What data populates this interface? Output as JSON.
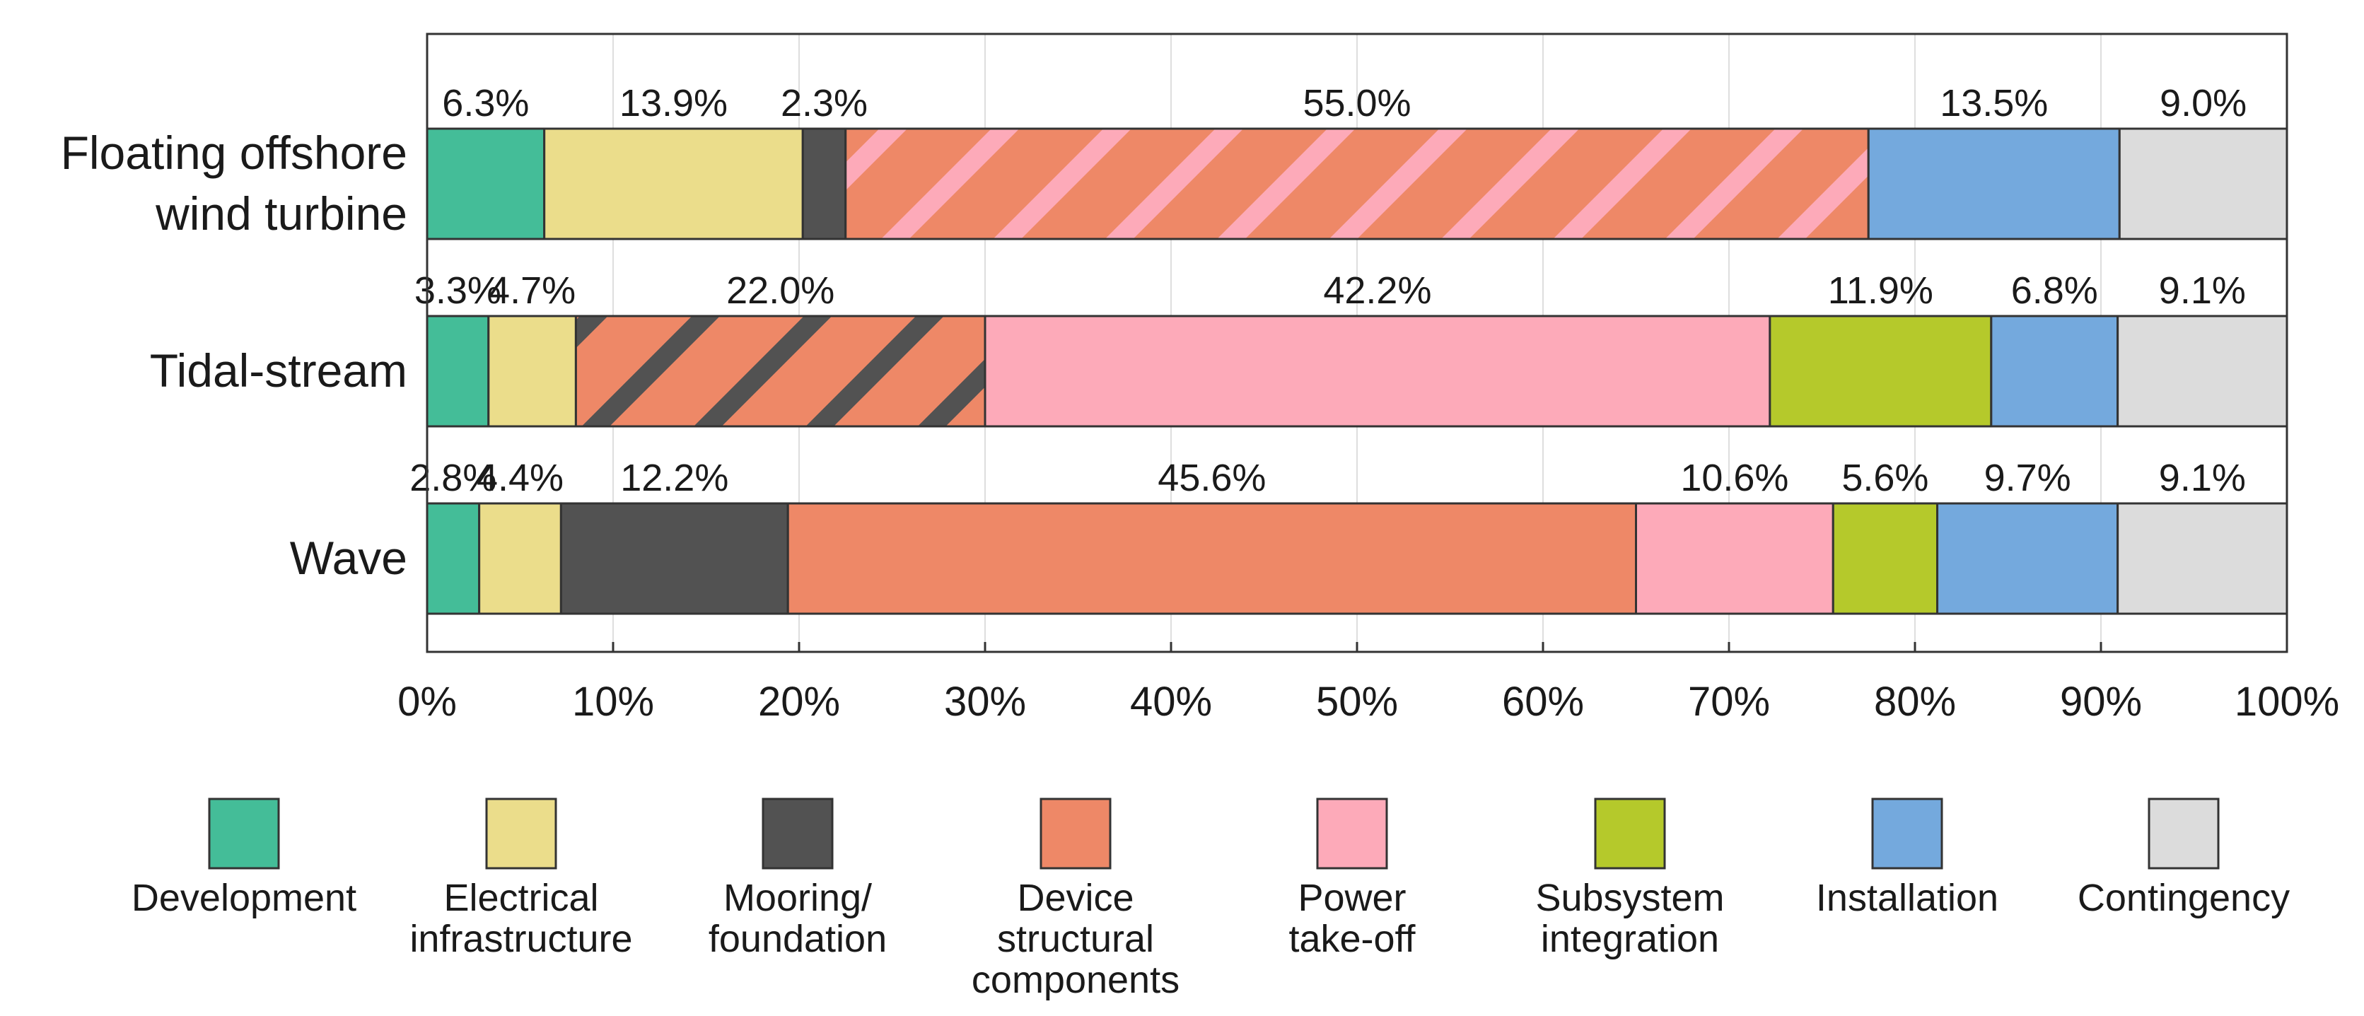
{
  "chart_data": {
    "type": "bar",
    "orientation": "horizontal",
    "stacked": true,
    "title": "",
    "xlabel": "",
    "ylabel": "",
    "xlim": [
      0,
      100
    ],
    "x_ticks": [
      "0%",
      "10%",
      "20%",
      "30%",
      "40%",
      "50%",
      "60%",
      "70%",
      "80%",
      "90%",
      "100%"
    ],
    "grid": "vertical",
    "legend_position": "bottom",
    "categories": [
      "Floating offshore wind turbine",
      "Tidal-stream",
      "Wave"
    ],
    "category_label_lines": [
      [
        "Floating offshore",
        "wind turbine"
      ],
      [
        "Tidal-stream"
      ],
      [
        "Wave"
      ]
    ],
    "legend": [
      {
        "key": "development",
        "lines": [
          "Development"
        ],
        "color": "#44BD98"
      },
      {
        "key": "electrical",
        "lines": [
          "Electrical",
          "infrastructure"
        ],
        "color": "#EBDD8B"
      },
      {
        "key": "mooring",
        "lines": [
          "Mooring/",
          "foundation"
        ],
        "color": "#525252"
      },
      {
        "key": "structural",
        "lines": [
          "Device",
          "structural",
          "components"
        ],
        "color": "#EE8867"
      },
      {
        "key": "pto",
        "lines": [
          "Power",
          "take-off"
        ],
        "color": "#FDAAB9"
      },
      {
        "key": "subsystem",
        "lines": [
          "Subsystem",
          "integration"
        ],
        "color": "#B5C92B"
      },
      {
        "key": "installation",
        "lines": [
          "Installation"
        ],
        "color": "#74A9DD"
      },
      {
        "key": "contingency",
        "lines": [
          "Contingency"
        ],
        "color": "#DCDCDC"
      }
    ],
    "bars": [
      {
        "category": "Floating offshore wind turbine",
        "segments": [
          {
            "series": "Development",
            "value": 6.3,
            "label": "6.3%",
            "fill": "#44BD98"
          },
          {
            "series": "Electrical infrastructure",
            "value": 13.9,
            "label": "13.9%",
            "fill": "#EBDD8B"
          },
          {
            "series": "Mooring/foundation",
            "value": 2.3,
            "label": "2.3%",
            "fill": "#525252"
          },
          {
            "series": "Device structural components + Power take-off",
            "value": 55.0,
            "label": "55.0%",
            "fill": "#EE8867",
            "hatch": "#FDAAB9"
          },
          {
            "series": "Installation",
            "value": 13.5,
            "label": "13.5%",
            "fill": "#74A9DD"
          },
          {
            "series": "Contingency",
            "value": 9.0,
            "label": "9.0%",
            "fill": "#DCDCDC"
          }
        ]
      },
      {
        "category": "Tidal-stream",
        "segments": [
          {
            "series": "Development",
            "value": 3.3,
            "label": "3.3%",
            "fill": "#44BD98"
          },
          {
            "series": "Electrical infrastructure",
            "value": 4.7,
            "label": "4.7%",
            "fill": "#EBDD8B"
          },
          {
            "series": "Device structural components + Mooring/foundation",
            "value": 22.0,
            "label": "22.0%",
            "fill": "#EE8867",
            "hatch": "#525252"
          },
          {
            "series": "Power take-off",
            "value": 42.2,
            "label": "42.2%",
            "fill": "#FDAAB9"
          },
          {
            "series": "Subsystem integration",
            "value": 11.9,
            "label": "11.9%",
            "fill": "#B5C92B"
          },
          {
            "series": "Installation",
            "value": 6.8,
            "label": "6.8%",
            "fill": "#74A9DD"
          },
          {
            "series": "Contingency",
            "value": 9.1,
            "label": "9.1%",
            "fill": "#DCDCDC"
          }
        ]
      },
      {
        "category": "Wave",
        "segments": [
          {
            "series": "Development",
            "value": 2.8,
            "label": "2.8%",
            "fill": "#44BD98"
          },
          {
            "series": "Electrical infrastructure",
            "value": 4.4,
            "label": "4.4%",
            "fill": "#EBDD8B"
          },
          {
            "series": "Mooring/foundation",
            "value": 12.2,
            "label": "12.2%",
            "fill": "#525252"
          },
          {
            "series": "Device structural components",
            "value": 45.6,
            "label": "45.6%",
            "fill": "#EE8867"
          },
          {
            "series": "Power take-off",
            "value": 10.6,
            "label": "10.6%",
            "fill": "#FDAAB9"
          },
          {
            "series": "Subsystem integration",
            "value": 5.6,
            "label": "5.6%",
            "fill": "#B5C92B"
          },
          {
            "series": "Installation",
            "value": 9.7,
            "label": "9.7%",
            "fill": "#74A9DD"
          },
          {
            "series": "Contingency",
            "value": 9.1,
            "label": "9.1%",
            "fill": "#DCDCDC"
          }
        ]
      }
    ]
  }
}
